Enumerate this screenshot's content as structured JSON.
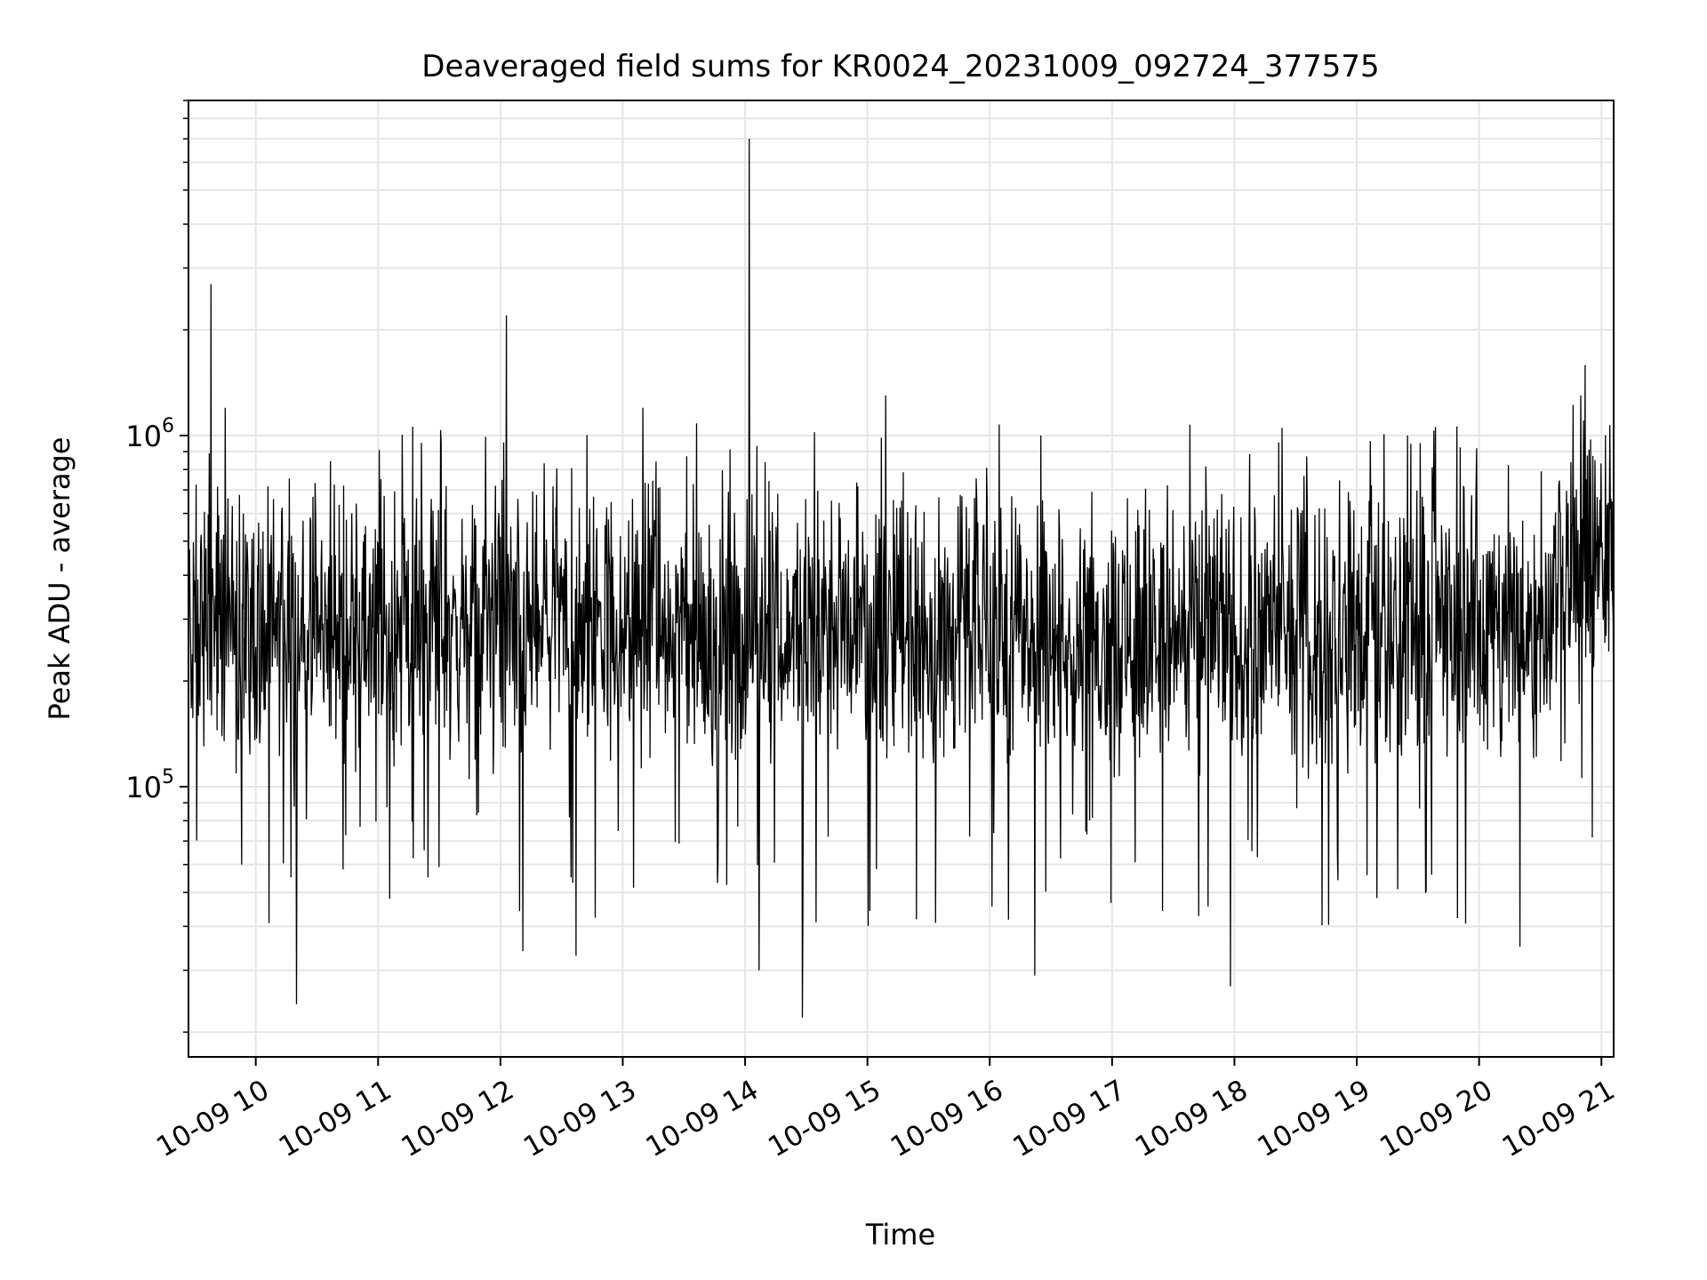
{
  "chart_data": {
    "type": "line",
    "title": "Deaveraged field sums for KR0024_20231009_092724_377575",
    "xlabel": "Time",
    "ylabel": "Peak ADU - average",
    "yscale": "log",
    "ylim": [
      17000,
      9000000
    ],
    "xlim": [
      "2023-10-09 09:27",
      "2023-10-09 21:06"
    ],
    "grid": true,
    "line_color": "#000000",
    "grid_color": "#e6e6e6",
    "x_tick_labels": [
      "10-09 10",
      "10-09 11",
      "10-09 12",
      "10-09 13",
      "10-09 14",
      "10-09 15",
      "10-09 16",
      "10-09 17",
      "10-09 18",
      "10-09 19",
      "10-09 20",
      "10-09 21"
    ],
    "y_tick_labels": [
      {
        "base": "10",
        "exp": "5"
      },
      {
        "base": "10",
        "exp": "6"
      }
    ],
    "series": [
      {
        "x": [
          "2023-10-09 09:27",
          "2023-10-09 09:35",
          "2023-10-09 09:38",
          "2023-10-09 09:45",
          "2023-10-09 09:48",
          "2023-10-09 09:53",
          "2023-10-09 10:00",
          "2023-10-09 10:10",
          "2023-10-09 10:12",
          "2023-10-09 10:20",
          "2023-10-09 10:35",
          "2023-10-09 10:50",
          "2023-10-09 11:05",
          "2023-10-09 11:25",
          "2023-10-09 11:45",
          "2023-10-09 12:01",
          "2023-10-09 12:03",
          "2023-10-09 12:05",
          "2023-10-09 12:11",
          "2023-10-09 12:25",
          "2023-10-09 12:37",
          "2023-10-09 12:45",
          "2023-10-09 13:00",
          "2023-10-09 13:10",
          "2023-10-09 13:20",
          "2023-10-09 13:30",
          "2023-10-09 13:45",
          "2023-10-09 14:00",
          "2023-10-09 14:02",
          "2023-10-09 14:07",
          "2023-10-09 14:20",
          "2023-10-09 14:28",
          "2023-10-09 14:40",
          "2023-10-09 14:50",
          "2023-10-09 15:09",
          "2023-10-09 15:20",
          "2023-10-09 15:40",
          "2023-10-09 16:03",
          "2023-10-09 16:22",
          "2023-10-09 16:25",
          "2023-10-09 16:45",
          "2023-10-09 17:00",
          "2023-10-09 17:20",
          "2023-10-09 17:40",
          "2023-10-09 17:58",
          "2023-10-09 18:03",
          "2023-10-09 18:20",
          "2023-10-09 18:40",
          "2023-10-09 19:00",
          "2023-10-09 19:25",
          "2023-10-09 19:40",
          "2023-10-09 19:58",
          "2023-10-09 20:05",
          "2023-10-09 20:20",
          "2023-10-09 20:38",
          "2023-10-09 20:50",
          "2023-10-09 21:00",
          "2023-10-09 21:06"
        ],
        "y": [
          300000,
          250000,
          2700000,
          1200000,
          280000,
          60000,
          250000,
          260000,
          270000,
          24000,
          300000,
          260000,
          280000,
          300000,
          290000,
          280000,
          2200000,
          550000,
          34000,
          260000,
          33000,
          200000,
          240000,
          1200000,
          250000,
          260000,
          280000,
          420000,
          7000000,
          30000,
          260000,
          22000,
          300000,
          250000,
          1300000,
          270000,
          260000,
          300000,
          29000,
          1000000,
          280000,
          290000,
          260000,
          270000,
          27000,
          280000,
          260000,
          270000,
          280000,
          1000000,
          260000,
          280000,
          270000,
          35000,
          250000,
          1300000,
          480000,
          150000
        ]
      }
    ]
  }
}
